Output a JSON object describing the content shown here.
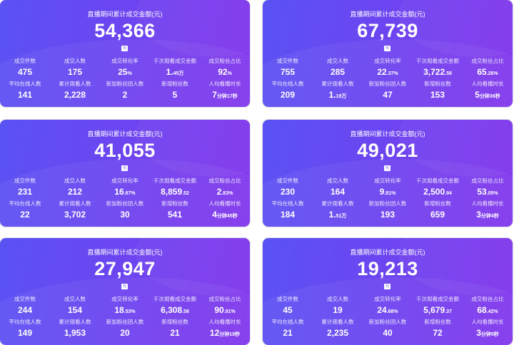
{
  "cards": [
    {
      "title": "直播期间累计成交金额(元)",
      "amount": "54,366",
      "unit": "元",
      "stats": [
        {
          "label": "成交件数",
          "main": "475",
          "suffix": ""
        },
        {
          "label": "成交人数",
          "main": "175",
          "suffix": ""
        },
        {
          "label": "成交转化率",
          "main": "25",
          "suffix": "%"
        },
        {
          "label": "千次观看成交金额",
          "main": "1.",
          "suffix": "45万"
        },
        {
          "label": "成交粉丝占比",
          "main": "92",
          "suffix": "%"
        },
        {
          "label": "平均在线人数",
          "main": "141",
          "suffix": ""
        },
        {
          "label": "累计观看人数",
          "main": "2,228",
          "suffix": ""
        },
        {
          "label": "新加粉丝团人数",
          "main": "2",
          "suffix": ""
        },
        {
          "label": "新增粉丝数",
          "main": "5",
          "suffix": ""
        },
        {
          "label": "人均看播时长",
          "main": "7",
          "suffix": "分钟17秒"
        }
      ]
    },
    {
      "title": "直播期间累计成交金额(元)",
      "amount": "67,739",
      "unit": "元",
      "stats": [
        {
          "label": "成交件数",
          "main": "755",
          "suffix": ""
        },
        {
          "label": "成交人数",
          "main": "285",
          "suffix": ""
        },
        {
          "label": "成交转化率",
          "main": "22",
          "suffix": ".37%"
        },
        {
          "label": "千次观看成交金额",
          "main": "3,722",
          "suffix": ".58"
        },
        {
          "label": "成交粉丝占比",
          "main": "65",
          "suffix": ".26%"
        },
        {
          "label": "平均在线人数",
          "main": "209",
          "suffix": ""
        },
        {
          "label": "累计观看人数",
          "main": "1.",
          "suffix": "19万"
        },
        {
          "label": "新加粉丝团人数",
          "main": "47",
          "suffix": ""
        },
        {
          "label": "新增粉丝数",
          "main": "153",
          "suffix": ""
        },
        {
          "label": "人均看播时长",
          "main": "5",
          "suffix": "分钟36秒"
        }
      ]
    },
    {
      "title": "直播期间累计成交金额(元)",
      "amount": "41,055",
      "unit": "元",
      "stats": [
        {
          "label": "成交件数",
          "main": "231",
          "suffix": ""
        },
        {
          "label": "成交人数",
          "main": "212",
          "suffix": ""
        },
        {
          "label": "成交转化率",
          "main": "16",
          "suffix": ".67%"
        },
        {
          "label": "千次观看成交金额",
          "main": "8,859",
          "suffix": ".52"
        },
        {
          "label": "成交粉丝占比",
          "main": "2",
          "suffix": ".83%"
        },
        {
          "label": "平均在线人数",
          "main": "22",
          "suffix": ""
        },
        {
          "label": "累计观看人数",
          "main": "3,702",
          "suffix": ""
        },
        {
          "label": "新加粉丝团人数",
          "main": "30",
          "suffix": ""
        },
        {
          "label": "新增粉丝数",
          "main": "541",
          "suffix": ""
        },
        {
          "label": "人均看播时长",
          "main": "4",
          "suffix": "分钟45秒"
        }
      ]
    },
    {
      "title": "直播期间累计成交金额(元)",
      "amount": "49,021",
      "unit": "元",
      "stats": [
        {
          "label": "成交件数",
          "main": "230",
          "suffix": ""
        },
        {
          "label": "成交人数",
          "main": "164",
          "suffix": ""
        },
        {
          "label": "成交转化率",
          "main": "9",
          "suffix": ".81%"
        },
        {
          "label": "千次观看成交金额",
          "main": "2,500",
          "suffix": ".94"
        },
        {
          "label": "成交粉丝占比",
          "main": "53",
          "suffix": ".05%"
        },
        {
          "label": "平均在线人数",
          "main": "184",
          "suffix": ""
        },
        {
          "label": "累计观看人数",
          "main": "1.",
          "suffix": "51万"
        },
        {
          "label": "新加粉丝团人数",
          "main": "193",
          "suffix": ""
        },
        {
          "label": "新增粉丝数",
          "main": "659",
          "suffix": ""
        },
        {
          "label": "人均看播时长",
          "main": "3",
          "suffix": "分钟4秒"
        }
      ]
    },
    {
      "title": "直播期间累计成交金额(元)",
      "amount": "27,947",
      "unit": "元",
      "stats": [
        {
          "label": "成交件数",
          "main": "244",
          "suffix": ""
        },
        {
          "label": "成交人数",
          "main": "154",
          "suffix": ""
        },
        {
          "label": "成交转化率",
          "main": "18",
          "suffix": ".53%"
        },
        {
          "label": "千次观看成交金额",
          "main": "6,308",
          "suffix": ".58"
        },
        {
          "label": "成交粉丝占比",
          "main": "90",
          "suffix": ".91%"
        },
        {
          "label": "平均在线人数",
          "main": "149",
          "suffix": ""
        },
        {
          "label": "累计观看人数",
          "main": "1,953",
          "suffix": ""
        },
        {
          "label": "新加粉丝团人数",
          "main": "20",
          "suffix": ""
        },
        {
          "label": "新增粉丝数",
          "main": "21",
          "suffix": ""
        },
        {
          "label": "人均看播时长",
          "main": "12",
          "suffix": "分钟19秒"
        }
      ]
    },
    {
      "title": "直播期间累计成交金额(元)",
      "amount": "19,213",
      "unit": "元",
      "stats": [
        {
          "label": "成交件数",
          "main": "45",
          "suffix": ""
        },
        {
          "label": "成交人数",
          "main": "19",
          "suffix": ""
        },
        {
          "label": "成交转化率",
          "main": "24",
          "suffix": ".68%"
        },
        {
          "label": "千次观看成交金额",
          "main": "5,679",
          "suffix": ".37"
        },
        {
          "label": "成交粉丝占比",
          "main": "68",
          "suffix": ".42%"
        },
        {
          "label": "平均在线人数",
          "main": "21",
          "suffix": ""
        },
        {
          "label": "累计观看人数",
          "main": "2,235",
          "suffix": ""
        },
        {
          "label": "新加粉丝团人数",
          "main": "40",
          "suffix": ""
        },
        {
          "label": "新增粉丝数",
          "main": "72",
          "suffix": ""
        },
        {
          "label": "人均看播时长",
          "main": "3",
          "suffix": "分钟5秒"
        }
      ]
    }
  ]
}
